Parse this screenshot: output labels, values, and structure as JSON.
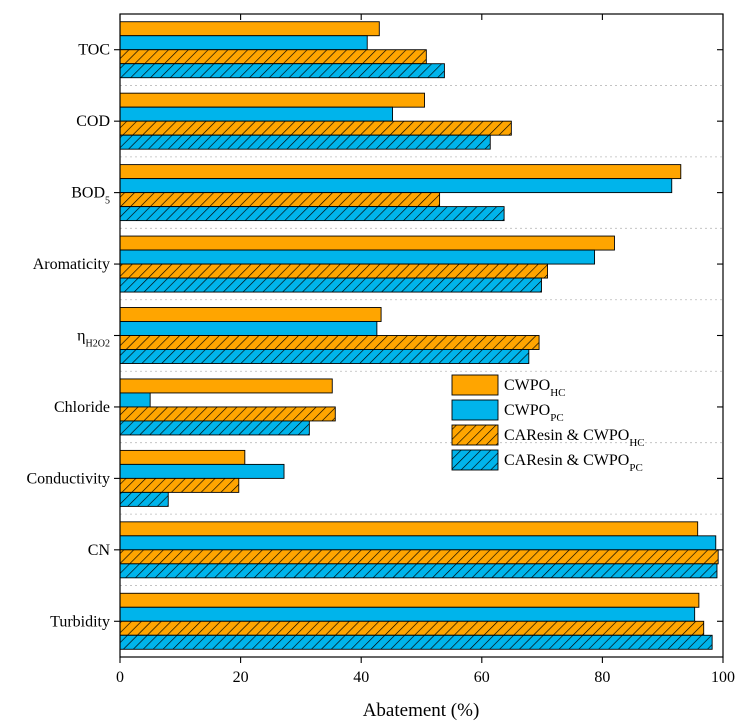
{
  "chart_data": {
    "type": "bar",
    "orientation": "horizontal",
    "xlabel": "Abatement (%)",
    "ylabel": "",
    "xlim": [
      0,
      100
    ],
    "xticks": [
      0,
      20,
      40,
      60,
      80,
      100
    ],
    "grid": "horizontal dotted separators between categories",
    "legend_placement": "center-right",
    "categories": [
      {
        "main": "TOC"
      },
      {
        "main": "COD"
      },
      {
        "main": "BOD",
        "sub": "5"
      },
      {
        "main": "Aromaticity"
      },
      {
        "main": "η",
        "sub": "H2O2"
      },
      {
        "main": "Chloride"
      },
      {
        "main": "Conductivity"
      },
      {
        "main": "CN"
      },
      {
        "main": "Turbidity"
      }
    ],
    "series": [
      {
        "name": "CWPO",
        "sub": "HC",
        "color": "#FFA500",
        "hatch": false,
        "values": [
          43,
          50.5,
          93,
          82,
          43.3,
          35.2,
          20.7,
          95.8,
          96
        ]
      },
      {
        "name": "CWPO",
        "sub": "PC",
        "color": "#00B4EB",
        "hatch": false,
        "values": [
          41,
          45.2,
          91.5,
          78.7,
          42.6,
          5,
          27.2,
          98.8,
          95.3
        ]
      },
      {
        "name": "CAResin & CWPO",
        "sub": "HC",
        "color": "#FFA500",
        "hatch": true,
        "values": [
          50.8,
          64.9,
          53,
          70.9,
          69.5,
          35.7,
          19.7,
          99.2,
          96.8
        ]
      },
      {
        "name": "CAResin & CWPO",
        "sub": "PC",
        "color": "#00B4EB",
        "hatch": true,
        "values": [
          53.8,
          61.4,
          63.7,
          69.9,
          67.8,
          31.4,
          8,
          99,
          98.2
        ]
      }
    ]
  }
}
